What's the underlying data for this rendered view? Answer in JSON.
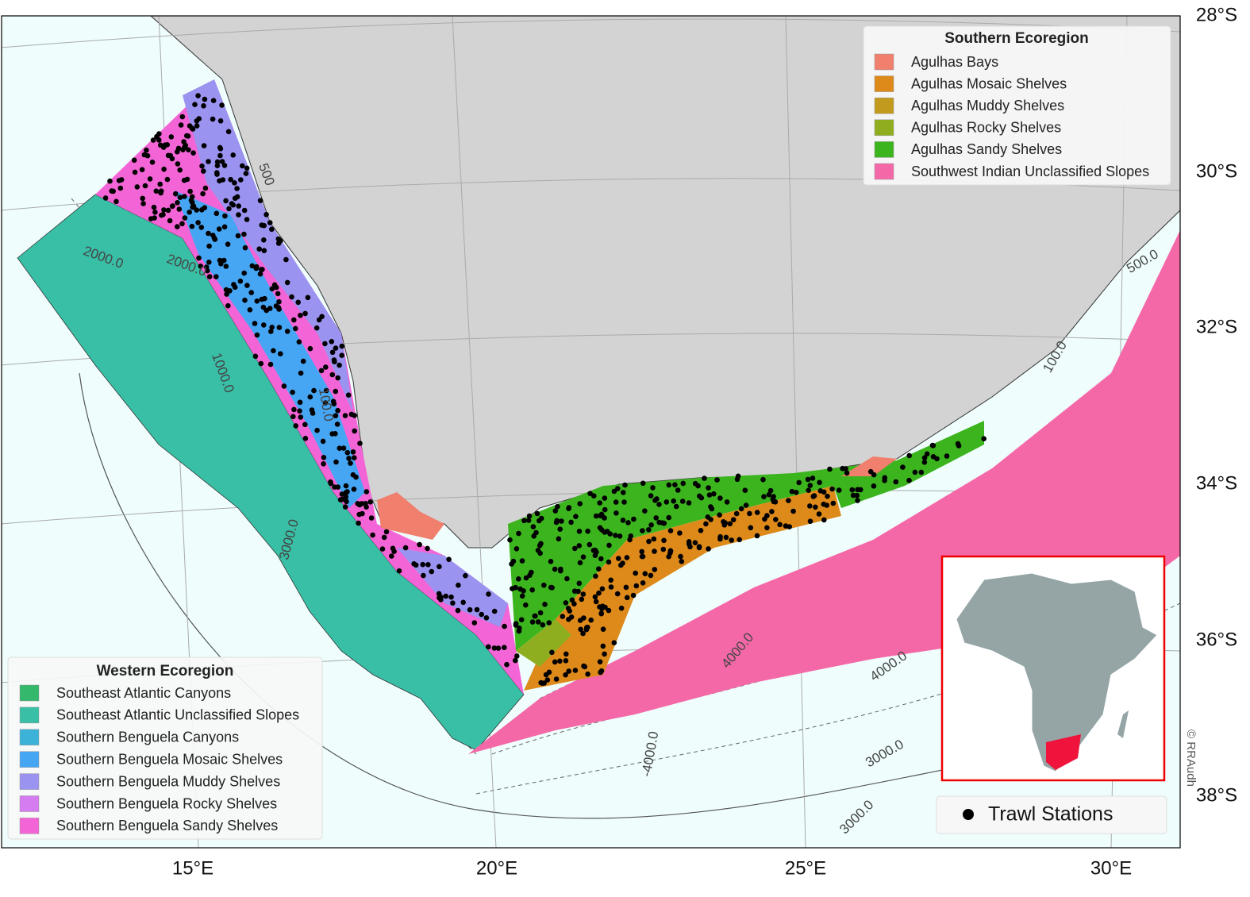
{
  "map": {
    "lat_labels": [
      "28°S",
      "30°S",
      "32°S",
      "34°S",
      "36°S",
      "38°S"
    ],
    "lon_labels": [
      "15°E",
      "20°E",
      "25°E",
      "30°E"
    ],
    "contour_labels": [
      "500",
      "2000.0",
      "2000.0",
      "1000.0",
      "100.0",
      "3000.0",
      "4000.0",
      "4000.0",
      "-4000.0",
      "3000.0",
      "3000.0",
      "100.0",
      "500.0"
    ],
    "southern_legend": {
      "title": "Southern Ecoregion",
      "entries": [
        {
          "label": "Agulhas Bays",
          "color": "#f07f6e"
        },
        {
          "label": "Agulhas Mosaic Shelves",
          "color": "#dd8a1b"
        },
        {
          "label": "Agulhas Muddy Shelves",
          "color": "#c29a1d"
        },
        {
          "label": "Agulhas Rocky Shelves",
          "color": "#8fae1f"
        },
        {
          "label": "Agulhas Sandy Shelves",
          "color": "#3cb41e"
        },
        {
          "label": "Southwest Indian Unclassified Slopes",
          "color": "#f468a8"
        }
      ]
    },
    "western_legend": {
      "title": "Western Ecoregion",
      "entries": [
        {
          "label": "Southeast Atlantic Canyons",
          "color": "#33b86c"
        },
        {
          "label": "Southeast Atlantic Unclassified Slopes",
          "color": "#39bfa6"
        },
        {
          "label": "Southern Benguela Canyons",
          "color": "#3cb2d8"
        },
        {
          "label": "Southern Benguela Mosaic Shelves",
          "color": "#46a6f4"
        },
        {
          "label": "Southern Benguela Muddy Shelves",
          "color": "#9b93f0"
        },
        {
          "label": "Southern Benguela Rocky Shelves",
          "color": "#d47cf0"
        },
        {
          "label": "Southern Benguela Sandy Shelves",
          "color": "#f365d6"
        }
      ]
    },
    "trawl_legend": "Trawl Stations",
    "credit": "© RRAudh"
  }
}
